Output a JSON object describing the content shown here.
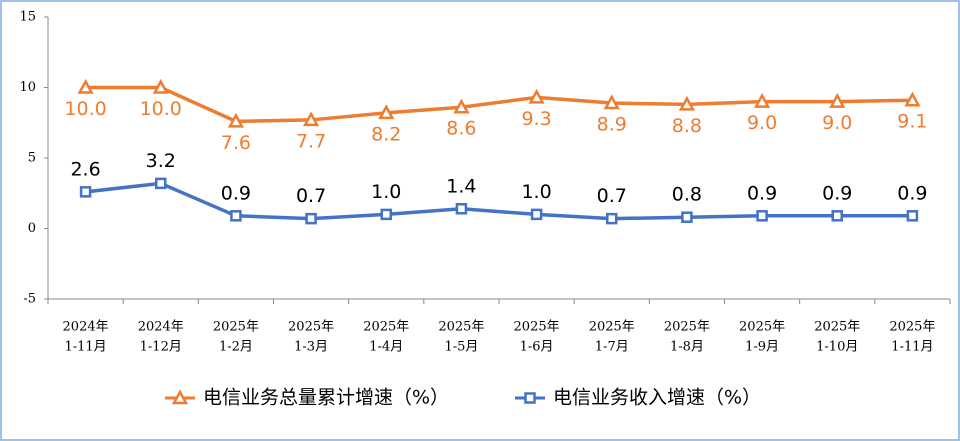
{
  "chart_data": {
    "type": "line",
    "categories": [
      [
        "2024年",
        "1-11月"
      ],
      [
        "2024年",
        "1-12月"
      ],
      [
        "2025年",
        "1-2月"
      ],
      [
        "2025年",
        "1-3月"
      ],
      [
        "2025年",
        "1-4月"
      ],
      [
        "2025年",
        "1-5月"
      ],
      [
        "2025年",
        "1-6月"
      ],
      [
        "2025年",
        "1-7月"
      ],
      [
        "2025年",
        "1-8月"
      ],
      [
        "2025年",
        "1-9月"
      ],
      [
        "2025年",
        "1-10月"
      ],
      [
        "2025年",
        "1-11月"
      ]
    ],
    "series": [
      {
        "name": "电信业务总量累计增速（%）",
        "color": "#ed7d31",
        "marker": "triangle",
        "label_position": "below",
        "label_color": "#ed7d31",
        "values": [
          10.0,
          10.0,
          7.6,
          7.7,
          8.2,
          8.6,
          9.3,
          8.9,
          8.8,
          9.0,
          9.0,
          9.1
        ],
        "value_labels": [
          "10.0",
          "10.0",
          "7.6",
          "7.7",
          "8.2",
          "8.6",
          "9.3",
          "8.9",
          "8.8",
          "9.0",
          "9.0",
          "9.1"
        ]
      },
      {
        "name": "电信业务收入增速（%）",
        "color": "#4472c4",
        "marker": "square",
        "label_position": "above",
        "label_color": "#000000",
        "values": [
          2.6,
          3.2,
          0.9,
          0.7,
          1.0,
          1.4,
          1.0,
          0.7,
          0.8,
          0.9,
          0.9,
          0.9
        ],
        "value_labels": [
          "2.6",
          "3.2",
          "0.9",
          "0.7",
          "1.0",
          "1.4",
          "1.0",
          "0.7",
          "0.8",
          "0.9",
          "0.9",
          "0.9"
        ]
      }
    ],
    "ylim": [
      -5,
      15
    ],
    "yticks": [
      -5,
      0,
      5,
      10,
      15
    ],
    "grid": false,
    "legend": "bottom"
  }
}
